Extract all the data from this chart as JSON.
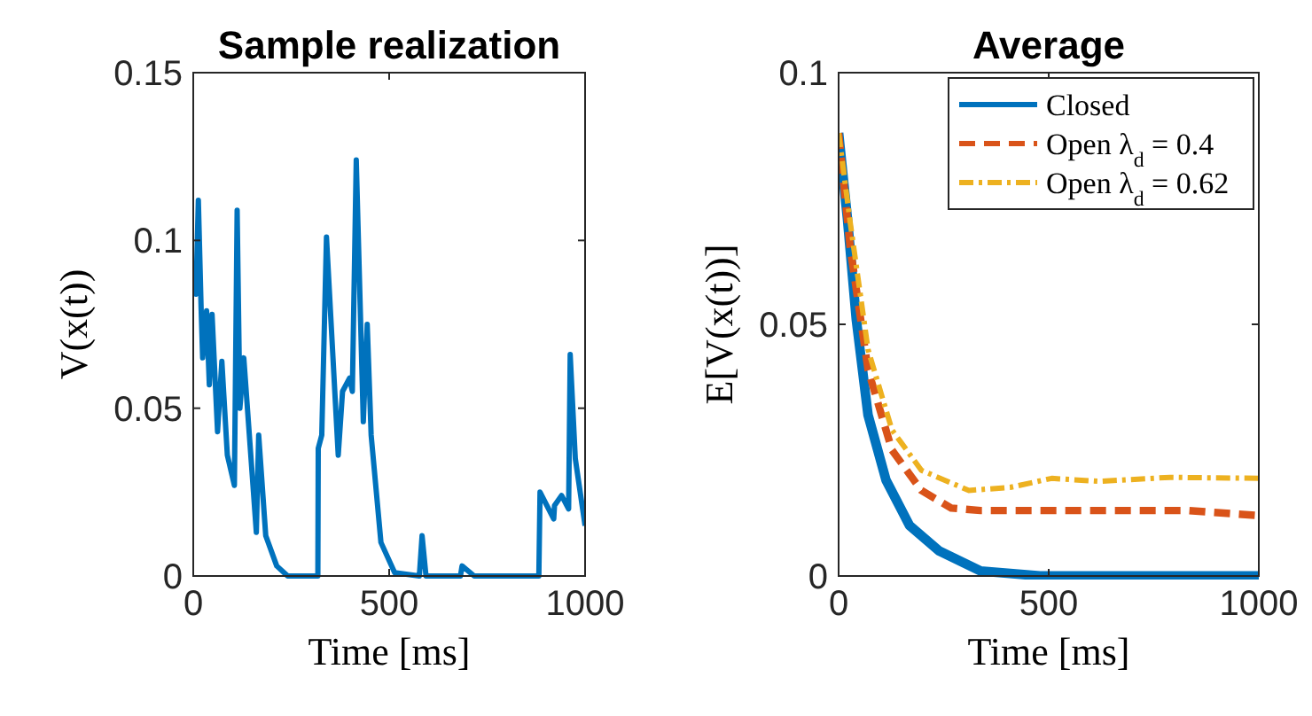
{
  "chart_data": [
    {
      "type": "line",
      "title": "Sample realization",
      "xlabel": "Time [ms]",
      "ylabel": "V(x(t))",
      "xlim": [
        0,
        1000
      ],
      "xticks": [
        0,
        500,
        1000
      ],
      "ylim": [
        0,
        0.15
      ],
      "yticks": [
        0,
        0.05,
        0.1,
        0.15
      ],
      "grid": false,
      "legend": false,
      "series": [
        {
          "color": "#0072bd",
          "line_style": "solid",
          "x": [
            0,
            7,
            13,
            20,
            24,
            34,
            41,
            48,
            62,
            73,
            87,
            105,
            112,
            119,
            129,
            161,
            167,
            185,
            213,
            241,
            318,
            319,
            328,
            340,
            370,
            381,
            399,
            406,
            416,
            434,
            444,
            454,
            479,
            514,
            577,
            584,
            594,
            682,
            686,
            717,
            882,
            885,
            920,
            922,
            940,
            958,
            962,
            975,
            1000
          ],
          "values": [
            0.093,
            0.084,
            0.112,
            0.08,
            0.065,
            0.079,
            0.057,
            0.078,
            0.043,
            0.064,
            0.036,
            0.027,
            0.109,
            0.05,
            0.065,
            0.013,
            0.042,
            0.012,
            0.003,
            0,
            0,
            0.038,
            0.042,
            0.101,
            0.036,
            0.055,
            0.059,
            0.055,
            0.124,
            0.046,
            0.075,
            0.042,
            0.01,
            0.001,
            0,
            0.012,
            0,
            0,
            0.003,
            0,
            0,
            0.025,
            0.017,
            0.021,
            0.024,
            0.02,
            0.066,
            0.035,
            0.015
          ]
        }
      ]
    },
    {
      "type": "line",
      "title": "Average",
      "xlabel": "Time [ms]",
      "ylabel": "E[V(x(t))]",
      "xlim": [
        0,
        1000
      ],
      "xticks": [
        0,
        500,
        1000
      ],
      "ylim": [
        0,
        0.1
      ],
      "yticks": [
        0,
        0.05,
        0.1
      ],
      "grid": false,
      "legend": "top right",
      "series": [
        {
          "name": "Closed",
          "color": "#0072bd",
          "line_style": "solid",
          "x": [
            0,
            21,
            42,
            70,
            113,
            169,
            239,
            338,
            479,
            1000
          ],
          "values": [
            0.088,
            0.071,
            0.051,
            0.032,
            0.019,
            0.01,
            0.005,
            0.001,
            0,
            0
          ]
        },
        {
          "name": "Open λ$_{d}$ = 0.4",
          "color": "#d95319",
          "line_style": "dashed",
          "x": [
            0,
            28,
            70,
            127,
            197,
            268,
            338,
            549,
            690,
            831,
            1000
          ],
          "values": [
            0.088,
            0.065,
            0.041,
            0.025,
            0.017,
            0.0135,
            0.013,
            0.013,
            0.013,
            0.013,
            0.012
          ]
        },
        {
          "name": "Open λ$_{d}$ = 0.62",
          "color": "#edb120",
          "line_style": "dotted",
          "x": [
            0,
            28,
            70,
            127,
            197,
            310,
            408,
            507,
            620,
            789,
            1000
          ],
          "values": [
            0.088,
            0.07,
            0.045,
            0.029,
            0.021,
            0.017,
            0.0176,
            0.0194,
            0.0188,
            0.0196,
            0.0194
          ]
        }
      ]
    }
  ]
}
